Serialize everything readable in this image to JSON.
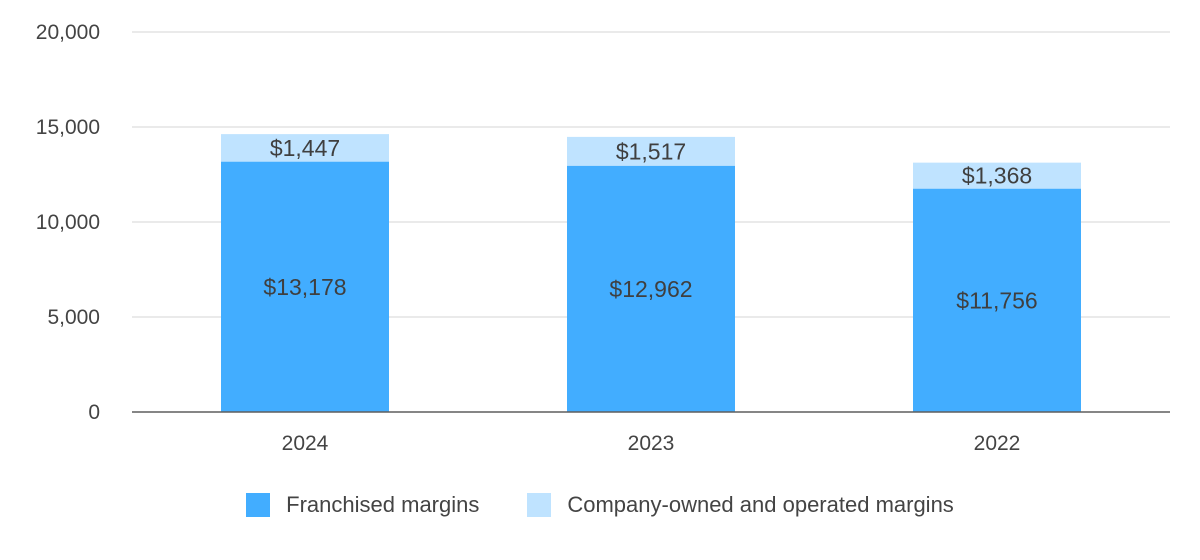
{
  "chart_data": {
    "type": "bar",
    "stacked": true,
    "categories": [
      "2024",
      "2023",
      "2022"
    ],
    "series": [
      {
        "name": "Franchised margins",
        "values": [
          13178,
          12962,
          11756
        ],
        "labels": [
          "$13,178",
          "$12,962",
          "$11,756"
        ],
        "color": "#42adff"
      },
      {
        "name": "Company-owned and operated margins",
        "values": [
          1447,
          1517,
          1368
        ],
        "labels": [
          "$1,447",
          "$1,517",
          "$1,368"
        ],
        "color": "#bfe3ff"
      }
    ],
    "yticks": [
      0,
      5000,
      10000,
      15000,
      20000
    ],
    "ytick_labels": [
      "0",
      "5,000",
      "10,000",
      "15,000",
      "20,000"
    ],
    "ylim": [
      0,
      20000
    ],
    "grid": true,
    "legend": "bottom"
  }
}
